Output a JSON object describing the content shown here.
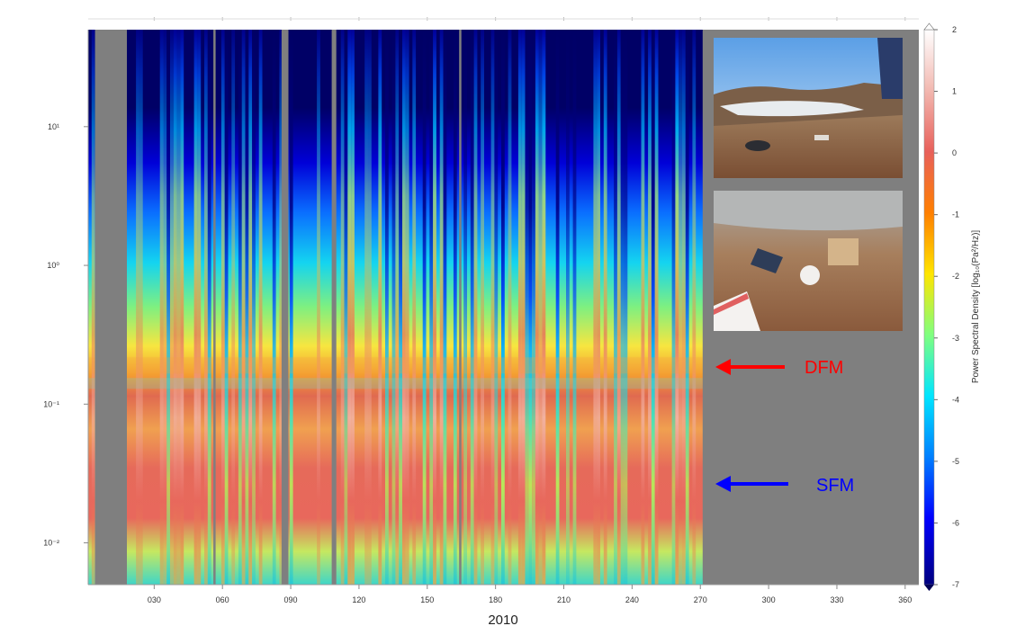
{
  "chart_data": {
    "type": "heatmap",
    "title": "",
    "xlabel": "2010",
    "ylabel": "",
    "x_tick_labels": [
      "030",
      "060",
      "090",
      "120",
      "150",
      "180",
      "210",
      "240",
      "270",
      "300",
      "330",
      "360"
    ],
    "x_ticks": [
      30,
      60,
      90,
      120,
      150,
      180,
      210,
      240,
      270,
      300,
      330,
      360
    ],
    "xlim": [
      1,
      366
    ],
    "y_scale": "log",
    "y_tick_labels": [
      "10¹",
      "10⁰",
      "10⁻¹",
      "10⁻²"
    ],
    "y_ticks": [
      10,
      1,
      0.1,
      0.01
    ],
    "ylim": [
      0.005,
      50
    ],
    "data_end_day": 271,
    "gaps": [
      {
        "start": 4,
        "end": 18
      },
      {
        "start": 56,
        "end": 57
      },
      {
        "start": 86,
        "end": 89
      },
      {
        "start": 108,
        "end": 110
      },
      {
        "start": 164,
        "end": 165
      }
    ],
    "colorbar": {
      "label": "Power Spectral Density [log₁₀(Pa²/Hz)]",
      "range": [
        -7,
        2
      ],
      "tick_labels": [
        "2",
        "1",
        "0",
        "-1",
        "-2",
        "-3",
        "-4",
        "-5",
        "-6",
        "-7"
      ],
      "colormap": [
        "#00007f",
        "#0000ff",
        "#007fff",
        "#00e5ff",
        "#7fff7f",
        "#ffe500",
        "#ff7f00",
        "#e8605a",
        "#f2b8b0",
        "#ffffff"
      ]
    },
    "annotations": [
      {
        "text": "DFM",
        "color": "#ff0000",
        "y_value": 0.19
      },
      {
        "text": "SFM",
        "color": "#0000ff",
        "y_value": 0.025
      }
    ]
  },
  "colors": {
    "gap": "#7f7f7f",
    "dfm_arrow": "#ff0000",
    "sfm_arrow": "#0000ff"
  }
}
